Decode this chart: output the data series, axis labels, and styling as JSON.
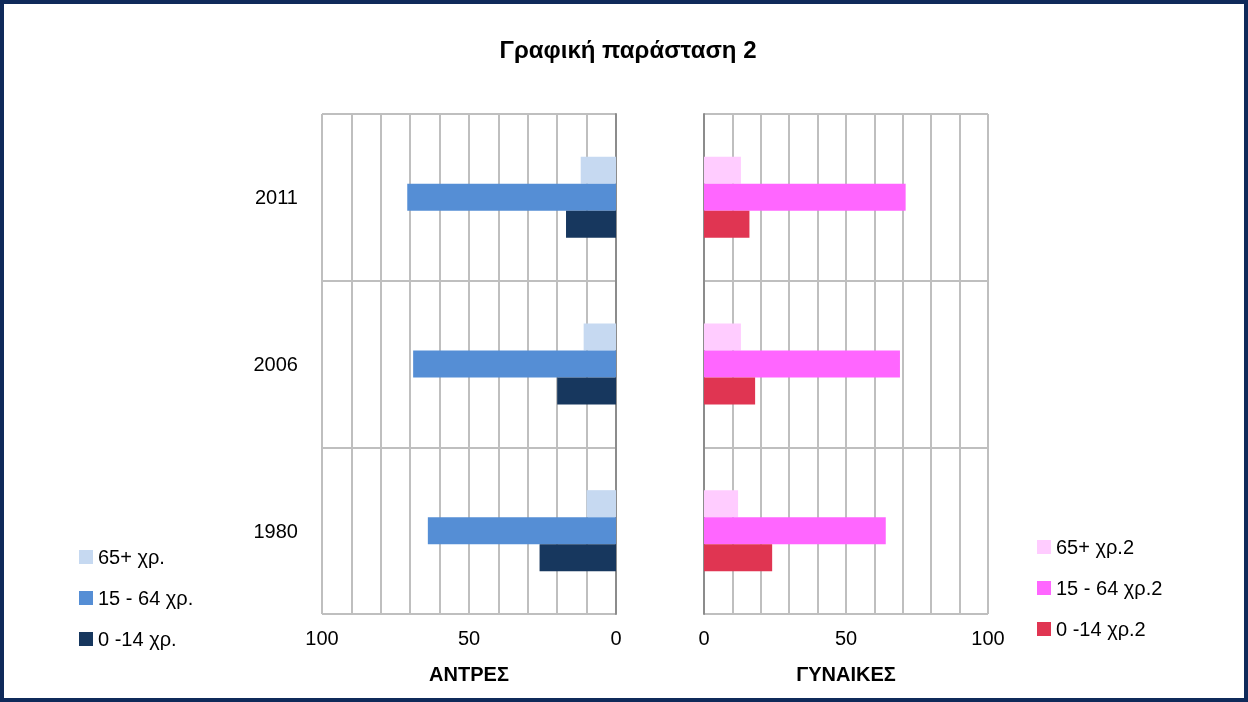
{
  "chart_data": [
    {
      "type": "bar",
      "orientation": "horizontal",
      "title": "Γραφική παράσταση 2",
      "xlabel": "ΑΝΤΡΕΣ",
      "categories": [
        "2011",
        "2006",
        "1980"
      ],
      "series": [
        {
          "name": "65+ χρ.",
          "color": "#c6d9f1",
          "values": [
            12,
            11,
            10
          ]
        },
        {
          "name": "15 - 64 χρ.",
          "color": "#558ed5",
          "values": [
            71,
            69,
            64
          ]
        },
        {
          "name": "0 -14 χρ.",
          "color": "#17375e",
          "values": [
            17,
            20,
            26
          ]
        }
      ],
      "xlim": [
        100,
        0
      ],
      "xticks": [
        100,
        {
          "value": 90,
          "label": null
        },
        {
          "value": 80,
          "label": null
        },
        {
          "value": 70,
          "label": null
        },
        {
          "value": 60,
          "label": null
        },
        50,
        {
          "value": 40,
          "label": null
        },
        {
          "value": 30,
          "label": null
        },
        {
          "value": 20,
          "label": null
        },
        {
          "value": 10,
          "label": null
        },
        0
      ],
      "grid": true,
      "legend": "bottom left"
    },
    {
      "type": "bar",
      "orientation": "horizontal",
      "xlabel": "ΓΥΝΑΙΚΕΣ",
      "categories": [
        "2011",
        "2006",
        "1980"
      ],
      "series": [
        {
          "name": "65+ χρ.2",
          "color": "#ffccff",
          "values": [
            13,
            13,
            12
          ]
        },
        {
          "name": "15 - 64 χρ.2",
          "color": "#ff66ff",
          "values": [
            71,
            69,
            64
          ]
        },
        {
          "name": "0 -14 χρ.2",
          "color": "#e03552",
          "values": [
            16,
            18,
            24
          ]
        }
      ],
      "xlim": [
        0,
        100
      ],
      "xticks": [
        0,
        {
          "value": 10,
          "label": null
        },
        {
          "value": 20,
          "label": null
        },
        {
          "value": 30,
          "label": null
        },
        {
          "value": 40,
          "label": null
        },
        50,
        {
          "value": 60,
          "label": null
        },
        {
          "value": 70,
          "label": null
        },
        {
          "value": 80,
          "label": null
        },
        {
          "value": 90,
          "label": null
        },
        100
      ],
      "tick_labels": "x",
      "grid": true,
      "legend": "bottom right"
    }
  ]
}
